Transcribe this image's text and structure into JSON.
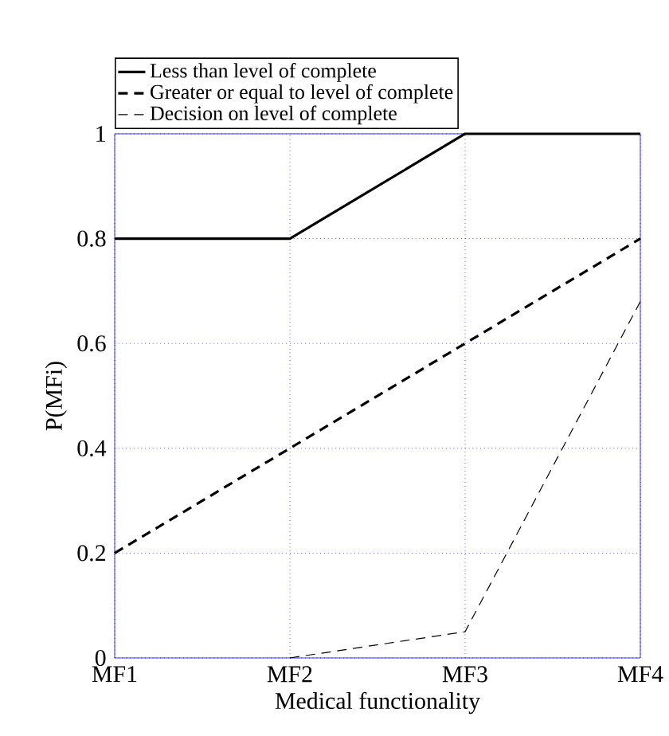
{
  "chart_data": {
    "type": "line",
    "xlabel": "Medical functionality",
    "ylabel": "P(MFi)",
    "categories": [
      "MF1",
      "MF2",
      "MF3",
      "MF4"
    ],
    "series": [
      {
        "name": "Less than level of complete",
        "color": "#000000",
        "line_style": "solid",
        "values": [
          0.8,
          0.8,
          1,
          1
        ]
      },
      {
        "name": "Greater or equal to level of complete",
        "color": "#000000",
        "line_style": "dashed",
        "values": [
          0.2,
          0.4,
          0.6,
          0.8
        ]
      },
      {
        "name": "Decision on level of complete",
        "color": "#000000",
        "line_style": "dashed",
        "values": [
          null,
          0,
          0.05,
          0.68
        ]
      }
    ],
    "ylim": [
      0,
      1
    ],
    "yticks": [
      0,
      0.2,
      0.4,
      0.6,
      0.8,
      1
    ],
    "grid": true,
    "legend": "top",
    "marker": "none"
  }
}
